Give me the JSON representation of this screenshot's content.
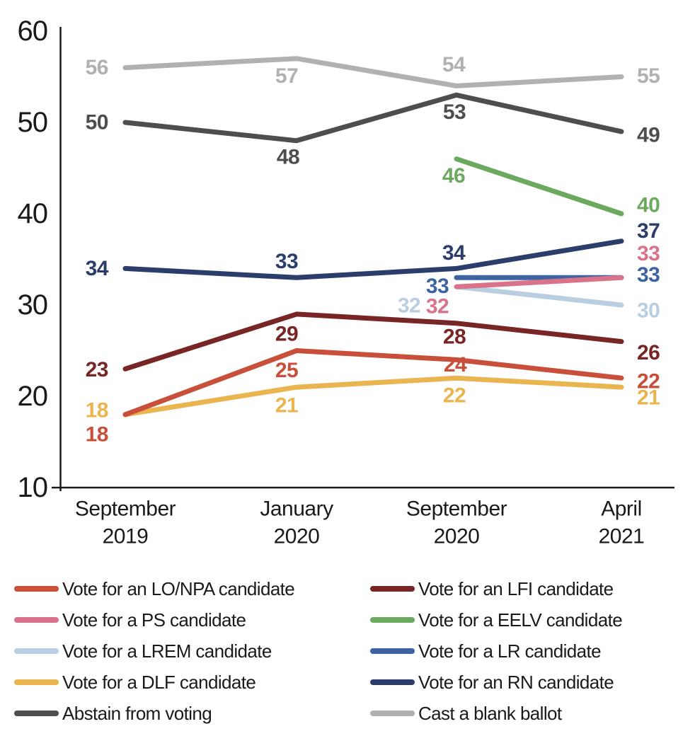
{
  "chart_data": {
    "type": "line",
    "title": "",
    "grid": false,
    "legend_position": "bottom-two-columns",
    "background": "#ffffff",
    "axis_color": "#1a1a1a",
    "ylim": [
      10,
      60
    ],
    "yticks": [
      60,
      50,
      40,
      30,
      20,
      10
    ],
    "x_categories": [
      "September 2019",
      "January 2020",
      "September 2020",
      "April 2021"
    ],
    "x_labels_lines": [
      [
        "September",
        "2019"
      ],
      [
        "January",
        "2020"
      ],
      [
        "September",
        "2020"
      ],
      [
        "April",
        "2021"
      ]
    ],
    "series": [
      {
        "id": "blank",
        "name": "Cast a blank ballot",
        "color": "#b1b1b1",
        "values": [
          56,
          57,
          54,
          55
        ],
        "label_dx": [
          -24,
          -14,
          -4,
          22
        ],
        "label_dy": [
          0,
          25,
          -30,
          -1
        ]
      },
      {
        "id": "abstain",
        "name": "Abstain from voting",
        "color": "#4e4e50",
        "values": [
          50,
          48,
          53,
          49
        ],
        "label_dx": [
          -24,
          -12,
          -3,
          22
        ],
        "label_dy": [
          0,
          23,
          24,
          5
        ]
      },
      {
        "id": "lrem",
        "name": "Vote for a LREM candidate",
        "color": "#b9cee1",
        "values": [
          null,
          null,
          32,
          30
        ],
        "label_dx": [
          0,
          0,
          -67,
          22
        ],
        "label_dy": [
          0,
          0,
          27,
          8
        ]
      },
      {
        "id": "dlf",
        "name": "Vote for a DLF candidate",
        "color": "#eab54f",
        "values": [
          18,
          21,
          22,
          21
        ],
        "label_dx": [
          -24,
          -14,
          -3,
          22
        ],
        "label_dy": [
          -6,
          26,
          25,
          15
        ]
      },
      {
        "id": "lr",
        "name": "Vote for a LR candidate",
        "color": "#3d63a1",
        "values": [
          null,
          null,
          33,
          33
        ],
        "label_dx": [
          0,
          0,
          -27,
          22
        ],
        "label_dy": [
          0,
          0,
          12,
          -4
        ]
      },
      {
        "id": "ps",
        "name": "Vote for a PS candidate",
        "color": "#d9738c",
        "values": [
          null,
          null,
          32,
          33
        ],
        "label_dx": [
          0,
          0,
          -27,
          22
        ],
        "label_dy": [
          0,
          0,
          28,
          -34
        ]
      },
      {
        "id": "eelv",
        "name": "Vote for a EELV candidate",
        "color": "#6baa5e",
        "values": [
          null,
          null,
          46,
          40
        ],
        "label_dx": [
          0,
          0,
          -4,
          22
        ],
        "label_dy": [
          0,
          0,
          24,
          -12
        ]
      },
      {
        "id": "rn",
        "name": "Vote for an RN candidate",
        "color": "#2b3d6a",
        "values": [
          34,
          33,
          34,
          37
        ],
        "label_dx": [
          -24,
          -14,
          -4,
          22
        ],
        "label_dy": [
          0,
          -23,
          -22,
          -14
        ]
      },
      {
        "id": "lfi",
        "name": "Vote for an LFI candidate",
        "color": "#772525",
        "values": [
          23,
          29,
          28,
          26
        ],
        "label_dx": [
          -24,
          -14,
          -3,
          22
        ],
        "label_dy": [
          1,
          28,
          19,
          16
        ]
      },
      {
        "id": "lonpa",
        "name": "Vote for an LO/NPA candidate",
        "color": "#c8503a",
        "values": [
          18,
          25,
          24,
          22
        ],
        "label_dx": [
          -24,
          -14,
          -2,
          22
        ],
        "label_dy": [
          28,
          28,
          7,
          5
        ]
      }
    ],
    "legend_left": [
      "lonpa",
      "ps",
      "lrem",
      "dlf",
      "abstain"
    ],
    "legend_right": [
      "lfi",
      "eelv",
      "lr",
      "rn",
      "blank"
    ]
  }
}
